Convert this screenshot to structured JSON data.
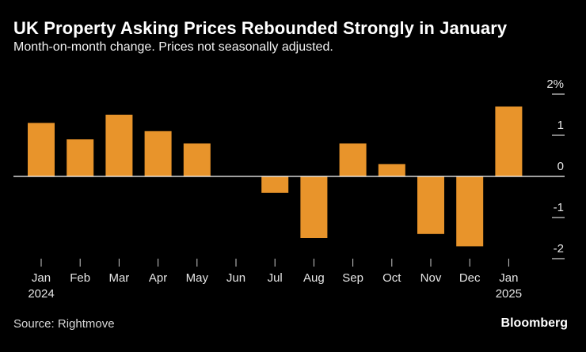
{
  "title": "UK Property Asking Prices Rebounded Strongly in January",
  "subtitle": "Month-on-month change. Prices not seasonally adjusted.",
  "source": "Source: Rightmove",
  "brand": "Bloomberg",
  "colors": {
    "bar": "#e8942b",
    "background": "#000000",
    "axis": "#ffffff"
  },
  "chart_data": {
    "type": "bar",
    "categories": [
      "Jan",
      "Feb",
      "Mar",
      "Apr",
      "May",
      "Jun",
      "Jul",
      "Aug",
      "Sep",
      "Oct",
      "Nov",
      "Dec",
      "Jan"
    ],
    "category_year_labels": [
      "2024",
      "",
      "",
      "",
      "",
      "",
      "",
      "",
      "",
      "",
      "",
      "",
      "2025"
    ],
    "values": [
      1.3,
      0.9,
      1.5,
      1.1,
      0.8,
      0.0,
      -0.4,
      -1.5,
      0.8,
      0.3,
      -1.4,
      -1.7,
      1.7
    ],
    "ylim": [
      -2,
      2
    ],
    "y_ticks": [
      2,
      1,
      0,
      -1,
      -2
    ],
    "y_tick_labels": [
      "2%",
      "1",
      "0",
      "-1",
      "-2"
    ],
    "y_axis_side": "right",
    "grid": false
  }
}
